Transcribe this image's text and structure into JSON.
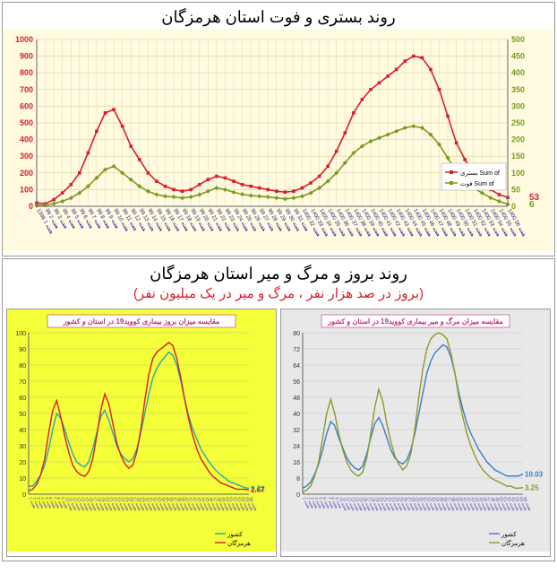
{
  "chart1": {
    "type": "line",
    "title": "روند بستری و فوت استان هرمزگان",
    "background_color": "#fffae0",
    "grid_color": "#d0c890",
    "series": [
      {
        "name": "بستری Sum of",
        "color": "#d81e2c",
        "marker": "square",
        "values": [
          20,
          15,
          40,
          80,
          130,
          200,
          320,
          450,
          560,
          580,
          480,
          360,
          280,
          200,
          150,
          120,
          100,
          90,
          100,
          130,
          160,
          180,
          170,
          150,
          130,
          120,
          110,
          100,
          90,
          85,
          90,
          110,
          140,
          180,
          240,
          330,
          440,
          560,
          640,
          700,
          740,
          780,
          820,
          870,
          900,
          890,
          820,
          700,
          540,
          380,
          280,
          200,
          150,
          100,
          70,
          53
        ],
        "end_label": "53"
      },
      {
        "name": "فوت Sum of",
        "color": "#7a9b1e",
        "marker": "diamond",
        "values": [
          2,
          3,
          8,
          15,
          25,
          40,
          60,
          85,
          110,
          120,
          100,
          80,
          60,
          45,
          35,
          30,
          28,
          25,
          28,
          35,
          45,
          55,
          50,
          42,
          36,
          32,
          30,
          28,
          25,
          22,
          25,
          30,
          40,
          55,
          75,
          100,
          130,
          160,
          180,
          195,
          205,
          215,
          225,
          235,
          240,
          235,
          215,
          185,
          145,
          105,
          75,
          55,
          40,
          25,
          15,
          6
        ],
        "end_label": "6"
      }
    ],
    "y_left": {
      "min": 0,
      "max": 1000,
      "step": 100,
      "color": "#d81e2c"
    },
    "y_right": {
      "min": 0,
      "max": 500,
      "step": 50,
      "color": "#7a9b1e"
    },
    "x_labels_prefix": "هفته",
    "x_years": [
      "1398",
      "99",
      "99",
      "99",
      "99",
      "99",
      "99",
      "99",
      "99",
      "99",
      "99",
      "99",
      "99",
      "99",
      "99",
      "99",
      "99",
      "99",
      "99",
      "99",
      "99",
      "99",
      "99",
      "99",
      "99",
      "99",
      "99",
      "99",
      "99",
      "99",
      "99",
      "1400",
      "1400",
      "1400",
      "1400",
      "1400",
      "1400",
      "1400",
      "1400",
      "1400",
      "1400",
      "1400",
      "1400",
      "1400",
      "1400",
      "1400",
      "1400",
      "1400",
      "1400",
      "1400",
      "1400",
      "1400",
      "1400",
      "1400",
      "1400",
      "1400"
    ]
  },
  "section2": {
    "title": "روند بروز و مرگ و میر استان هرمزگان",
    "subtitle": "(بروز در صد هزار نفر ، مرگ و میر در یک میلیون نفر)",
    "subtitle_color": "#d81e2c"
  },
  "chart2a": {
    "type": "line",
    "small_title": "مقایسه میزان بروز بیماری کووید19 در استان و کشور",
    "background_color": "#f4fe39",
    "grid_color": "#c9c96a",
    "series": [
      {
        "name": "کشور",
        "color": "#2aa8a8",
        "values": [
          5,
          5,
          8,
          12,
          18,
          28,
          40,
          50,
          47,
          40,
          32,
          25,
          20,
          18,
          17,
          20,
          28,
          38,
          48,
          52,
          46,
          38,
          30,
          25,
          22,
          20,
          22,
          28,
          38,
          50,
          62,
          72,
          78,
          82,
          85,
          88,
          86,
          80,
          70,
          58,
          48,
          40,
          34,
          28,
          24,
          20,
          17,
          14,
          12,
          10,
          8,
          7,
          6,
          5,
          4,
          3.72
        ],
        "end_label": "3.72"
      },
      {
        "name": "هرمزگان",
        "color": "#d81e2c",
        "values": [
          2,
          3,
          6,
          12,
          22,
          38,
          52,
          58,
          48,
          36,
          26,
          18,
          14,
          12,
          11,
          14,
          22,
          36,
          52,
          62,
          56,
          44,
          32,
          24,
          19,
          16,
          18,
          26,
          40,
          58,
          74,
          84,
          88,
          90,
          92,
          94,
          92,
          84,
          72,
          58,
          46,
          36,
          28,
          22,
          18,
          14,
          11,
          9,
          7,
          6,
          5,
          4,
          3,
          3,
          3,
          2.67
        ],
        "end_label": "2.67"
      }
    ],
    "y_max": 100
  },
  "chart2b": {
    "type": "line",
    "small_title": "مقایسه میزان مرگ و میر بیماری کووید19 در استان و کشور",
    "background_color": "#e8e8e8",
    "grid_color": "#c4c4c4",
    "series": [
      {
        "name": "کشور",
        "color": "#3a7fc4",
        "values": [
          3,
          4,
          6,
          10,
          15,
          22,
          30,
          36,
          34,
          28,
          23,
          18,
          15,
          13,
          12,
          14,
          20,
          28,
          35,
          38,
          34,
          28,
          22,
          18,
          16,
          15,
          17,
          22,
          30,
          40,
          50,
          60,
          66,
          70,
          72,
          74,
          73,
          68,
          60,
          50,
          42,
          35,
          30,
          26,
          22,
          19,
          16,
          14,
          12,
          11,
          10,
          9,
          9,
          9,
          9,
          10.03
        ],
        "end_label": "10.03"
      },
      {
        "name": "هرمزگان",
        "color": "#8a9b2c",
        "values": [
          1,
          2,
          4,
          9,
          16,
          28,
          40,
          47,
          40,
          30,
          22,
          16,
          12,
          10,
          9,
          11,
          18,
          30,
          43,
          52,
          46,
          35,
          26,
          19,
          15,
          12,
          14,
          20,
          32,
          48,
          62,
          72,
          77,
          79,
          80,
          79,
          77,
          70,
          60,
          48,
          38,
          30,
          24,
          19,
          15,
          12,
          10,
          8,
          7,
          6,
          5,
          4,
          4,
          3,
          3,
          3.25
        ],
        "end_label": "3.25"
      }
    ],
    "y_max": 80
  }
}
